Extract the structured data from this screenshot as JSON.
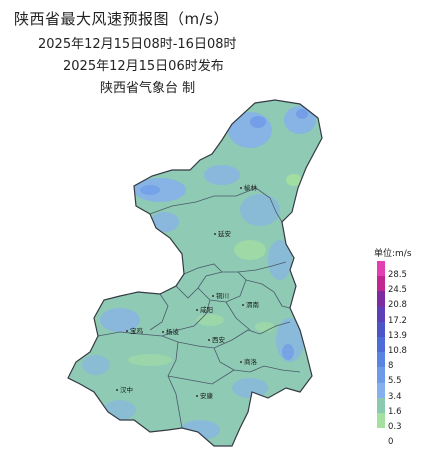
{
  "header": {
    "title": "陕西省最大风速预报图（m/s）",
    "valid_period": "2025年12月15日08时-16日08时",
    "issued": "2025年12月15日06时发布",
    "issuer": "陕西省气象台  制"
  },
  "map": {
    "region": "陕西",
    "city_labels": [
      "榆林",
      "延安",
      "铜川",
      "渭南",
      "咸阳",
      "杨凌",
      "宝鸡",
      "西安",
      "商洛",
      "汉中",
      "安康"
    ]
  },
  "legend": {
    "title": "单位:m/s",
    "levels": [
      {
        "label": "28.5",
        "color": "#e040b0"
      },
      {
        "label": "24.5",
        "color": "#c02890"
      },
      {
        "label": "20.8",
        "color": "#7a2ca0"
      },
      {
        "label": "17.2",
        "color": "#5c3fb8"
      },
      {
        "label": "13.9",
        "color": "#4a56c8"
      },
      {
        "label": "10.8",
        "color": "#4e6cd8"
      },
      {
        "label": "8",
        "color": "#5a84e2"
      },
      {
        "label": "5.5",
        "color": "#6f9ae8"
      },
      {
        "label": "3.4",
        "color": "#86b0ec"
      },
      {
        "label": "1.6",
        "color": "#8ccab0"
      },
      {
        "label": "0.3",
        "color": "#a4e0a0"
      },
      {
        "label": "0",
        "color": "#ffffff"
      }
    ]
  }
}
